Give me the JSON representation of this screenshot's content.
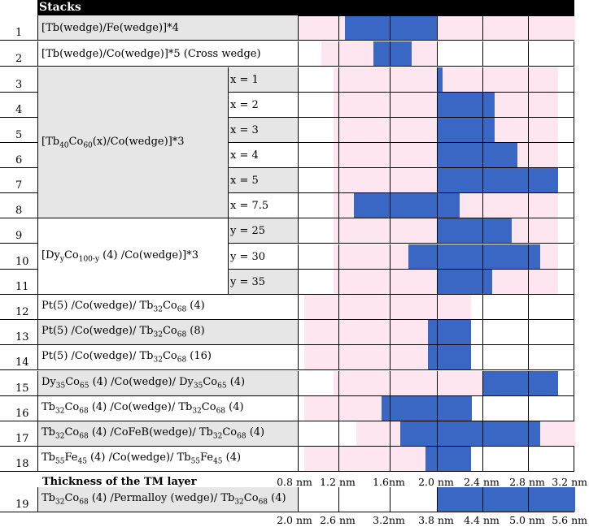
{
  "header": {
    "title": "Stacks"
  },
  "rows": [
    {
      "num": "1",
      "label": "[Tb(wedge)/Fe(wedge)]*4",
      "shaded": true
    },
    {
      "num": "2",
      "label": "[Tb(wedge)/Co(wedge)]*5  (Cross wedge)",
      "shaded": false
    },
    {
      "num": "3",
      "sub": "x = 1",
      "shaded": true
    },
    {
      "num": "4",
      "sub": "x = 2",
      "shaded": false
    },
    {
      "num": "5",
      "sub": "x = 3",
      "shaded": true
    },
    {
      "num": "6",
      "sub": "x = 4",
      "shaded": false
    },
    {
      "num": "7",
      "sub": "x = 5",
      "shaded": true
    },
    {
      "num": "8",
      "sub": "x = 7.5",
      "shaded": false
    },
    {
      "num": "9",
      "sub": "y = 25",
      "shaded": true
    },
    {
      "num": "10",
      "sub": "y = 30",
      "shaded": false
    },
    {
      "num": "11",
      "sub": "y = 35",
      "shaded": true
    },
    {
      "num": "12",
      "label": "Pt(5) /Co(wedge)/ Tb<sub>32</sub>Co<sub>68</sub> (4)",
      "shaded": false
    },
    {
      "num": "13",
      "label": "Pt(5) /Co(wedge)/ Tb<sub>32</sub>Co<sub>68</sub> (8)",
      "shaded": true
    },
    {
      "num": "14",
      "label": "Pt(5) /Co(wedge)/ Tb<sub>32</sub>Co<sub>68</sub> (16)",
      "shaded": false
    },
    {
      "num": "15",
      "label": "Dy<sub>35</sub>Co<sub>65</sub> (4) /Co(wedge)/ Dy<sub>35</sub>Co<sub>65</sub> (4)",
      "shaded": true
    },
    {
      "num": "16",
      "label": "Tb<sub>32</sub>Co<sub>68</sub> (4) /Co(wedge)/ Tb<sub>32</sub>Co<sub>68</sub> (4)",
      "shaded": false
    },
    {
      "num": "17",
      "label": "Tb<sub>32</sub>Co<sub>68</sub> (4) /CoFeB(wedge)/ Tb<sub>32</sub>Co<sub>68</sub> (4)",
      "shaded": true
    },
    {
      "num": "18",
      "label": "Tb<sub>55</sub>Fe<sub>45</sub> (4) /Co(wedge)/ Tb<sub>55</sub>Fe<sub>45</sub> (4)",
      "shaded": false
    },
    {
      "num": "19",
      "label": "Tb<sub>32</sub>Co<sub>68</sub> (4) /Permalloy (wedge)/ Tb<sub>32</sub>Co<sub>68</sub> (4)",
      "shaded": true
    }
  ],
  "groups": [
    {
      "label": "[Tb<sub>40</sub>Co<sub>60</sub>(x)/Co(wedge)]*3"
    },
    {
      "label": "[Dy<sub>y</sub>Co<sub>100-y</sub> (4) /Co(wedge)]*3"
    }
  ],
  "axis": {
    "title": "Thickness of the TM layer",
    "ticks_top": [
      "0.8 nm",
      "1.2 nm",
      "1.6nm",
      "2.0 nm",
      "2.4 nm",
      "2.8 nm",
      "3.2 nm"
    ],
    "ticks_bottom": [
      "2.0 nm",
      "2.6 nm",
      "3.2nm",
      "3.8 nm",
      "4.4 nm",
      "5.0 nm",
      "5.6 nm"
    ]
  },
  "colors": {
    "pma_range": "#fde6ef",
    "sot_switching": "#3a66c4"
  },
  "chart_data": {
    "type": "bar",
    "note_units": "nm",
    "series": [
      {
        "row": 1,
        "pink": [
          0.8,
          3.2
        ],
        "blue": [
          1.2,
          2.0
        ]
      },
      {
        "row": 2,
        "pink": [
          1.0,
          2.0
        ],
        "blue": [
          1.45,
          1.78
        ]
      },
      {
        "row": 3,
        "pink": [
          1.1,
          3.05
        ],
        "blue": [
          2.0,
          2.05
        ]
      },
      {
        "row": 4,
        "pink": [
          1.1,
          3.05
        ],
        "blue": [
          2.0,
          2.5
        ]
      },
      {
        "row": 5,
        "pink": [
          1.1,
          3.05
        ],
        "blue": [
          2.0,
          2.5
        ]
      },
      {
        "row": 6,
        "pink": [
          1.1,
          3.05
        ],
        "blue": [
          2.0,
          2.7
        ]
      },
      {
        "row": 7,
        "pink": [
          1.1,
          3.05
        ],
        "blue": [
          2.0,
          3.05
        ]
      },
      {
        "row": 8,
        "pink": [
          1.1,
          3.05
        ],
        "blue": [
          1.28,
          2.2
        ]
      },
      {
        "row": 9,
        "pink": [
          1.1,
          3.05
        ],
        "blue": [
          2.0,
          2.65
        ]
      },
      {
        "row": 10,
        "pink": [
          1.1,
          3.05
        ],
        "blue": [
          1.75,
          2.9
        ]
      },
      {
        "row": 11,
        "pink": [
          1.1,
          3.05
        ],
        "blue": [
          2.0,
          2.48
        ]
      },
      {
        "row": 12,
        "pink": [
          0.85,
          2.3
        ],
        "blue": null
      },
      {
        "row": 13,
        "pink": [
          0.85,
          2.3
        ],
        "blue": [
          1.92,
          2.3
        ]
      },
      {
        "row": 14,
        "pink": [
          0.85,
          2.3
        ],
        "blue": [
          1.92,
          2.3
        ]
      },
      {
        "row": 15,
        "pink": [
          1.1,
          2.4
        ],
        "blue": [
          2.4,
          3.05
        ]
      },
      {
        "row": 16,
        "pink": [
          0.85,
          2.3
        ],
        "blue": [
          1.52,
          2.3
        ]
      },
      {
        "row": 17,
        "pink": [
          1.3,
          3.2
        ],
        "blue": [
          1.68,
          2.9
        ]
      },
      {
        "row": 18,
        "pink": [
          0.85,
          2.3
        ],
        "blue": [
          1.9,
          2.3
        ]
      },
      {
        "row": 19,
        "pink": null,
        "blue": [
          2.0,
          3.2
        ]
      }
    ]
  }
}
